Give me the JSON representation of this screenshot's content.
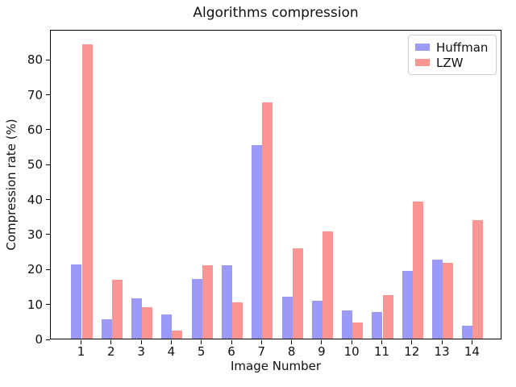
{
  "chart_data": {
    "type": "bar",
    "title": "Algorithms compression",
    "xlabel": "Image Number",
    "ylabel": "Compression rate (%)",
    "categories": [
      "1",
      "2",
      "3",
      "4",
      "5",
      "6",
      "7",
      "8",
      "9",
      "10",
      "11",
      "12",
      "13",
      "14"
    ],
    "series": [
      {
        "name": "Huffman",
        "color": "#9b9af8",
        "values": [
          21.2,
          5.5,
          11.5,
          6.9,
          17.1,
          21.1,
          55.5,
          11.9,
          10.8,
          8.1,
          7.6,
          19.3,
          22.6,
          3.8
        ]
      },
      {
        "name": "LZW",
        "color": "#fb9693",
        "values": [
          84.2,
          16.8,
          9.1,
          2.4,
          20.9,
          10.5,
          67.5,
          25.8,
          30.6,
          4.6,
          12.4,
          39.3,
          21.6,
          33.9
        ]
      }
    ],
    "ylim": [
      0,
      88.6
    ],
    "yticks": [
      0,
      10,
      20,
      30,
      40,
      50,
      60,
      70,
      80
    ],
    "legend_position": "upper right",
    "grid": false,
    "background": "#ffffff",
    "spine_color": "#000000"
  }
}
